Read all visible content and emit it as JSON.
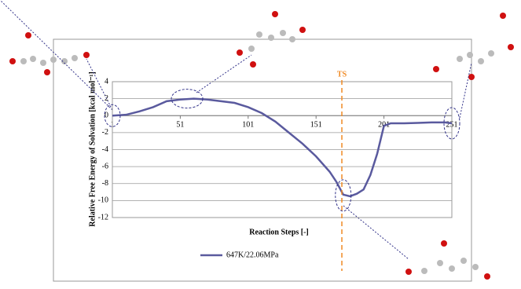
{
  "chart_data": {
    "type": "line",
    "x_label": "Reaction Steps [-]",
    "y_label": "Relative Free Energy of Solvation [kcal mol⁻¹]",
    "xlim": [
      1,
      251
    ],
    "xticks": [
      1,
      51,
      101,
      151,
      201,
      251
    ],
    "ylim": [
      -12,
      4
    ],
    "yticks": [
      -12,
      -10,
      -8,
      -6,
      -4,
      -2,
      0,
      2,
      4
    ],
    "grid": true,
    "series": [
      {
        "name": "647K/22.06MPa",
        "color": "#5a5a9e",
        "x": [
          1,
          11,
          21,
          31,
          41,
          51,
          61,
          71,
          81,
          91,
          101,
          111,
          121,
          131,
          141,
          151,
          161,
          166,
          171,
          176,
          181,
          186,
          191,
          196,
          201,
          206,
          216,
          226,
          236,
          246,
          251
        ],
        "values": [
          0,
          0.1,
          0.5,
          1.0,
          1.7,
          1.9,
          2.0,
          1.9,
          1.7,
          1.5,
          1.0,
          0.3,
          -0.7,
          -2.0,
          -3.3,
          -4.8,
          -6.6,
          -7.8,
          -9.3,
          -9.5,
          -9.2,
          -8.7,
          -7.0,
          -4.5,
          -1.2,
          -0.9,
          -0.9,
          -0.85,
          -0.8,
          -0.8,
          -0.9
        ]
      }
    ],
    "annotations": [
      {
        "text": "TS",
        "x": 170,
        "color": "#f08a24"
      }
    ]
  }
}
